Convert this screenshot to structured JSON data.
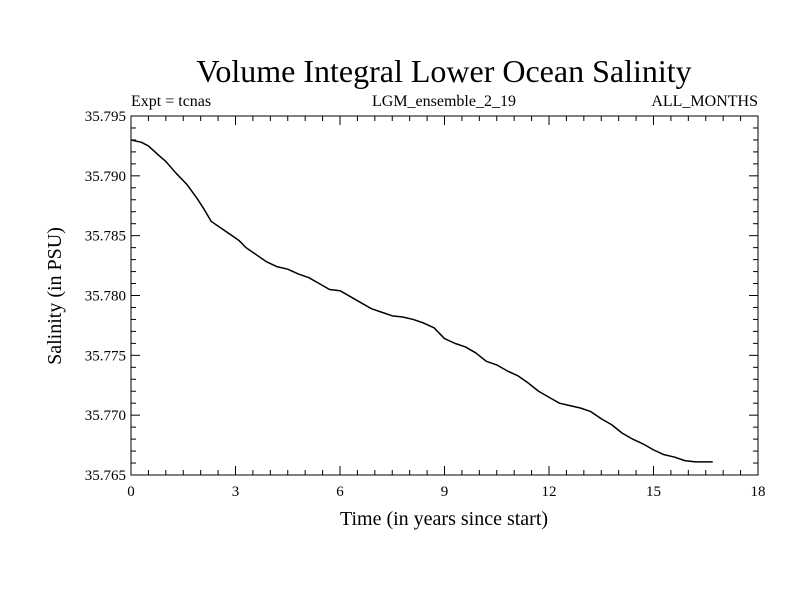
{
  "chart_data": {
    "type": "line",
    "title": "Volume Integral Lower Ocean Salinity",
    "subtitle_left": "Expt = tcnas",
    "subtitle_center": "LGM_ensemble_2_19",
    "subtitle_right": "ALL_MONTHS",
    "xlabel": "Time (in years since start)",
    "ylabel": "Salinity (in PSU)",
    "xlim": [
      0,
      18
    ],
    "ylim": [
      35.765,
      35.795
    ],
    "xticks": [
      0,
      3,
      6,
      9,
      12,
      15,
      18
    ],
    "xtick_labels": [
      "0",
      "3",
      "6",
      "9",
      "12",
      "15",
      "18"
    ],
    "yticks": [
      35.765,
      35.77,
      35.775,
      35.78,
      35.785,
      35.79,
      35.795
    ],
    "ytick_labels": [
      "35.765",
      "35.770",
      "35.775",
      "35.780",
      "35.785",
      "35.790",
      "35.795"
    ],
    "x_minor_step": 0.5,
    "y_minor_step": 0.001,
    "line_color": "#000000",
    "series": [
      {
        "name": "salinity",
        "x": [
          0,
          0.3,
          0.5,
          0.8,
          1.0,
          1.3,
          1.6,
          1.9,
          2.1,
          2.3,
          2.6,
          2.9,
          3.1,
          3.3,
          3.6,
          3.9,
          4.2,
          4.5,
          4.8,
          5.1,
          5.4,
          5.7,
          6.0,
          6.3,
          6.6,
          6.9,
          7.2,
          7.5,
          7.8,
          8.1,
          8.4,
          8.7,
          9.0,
          9.3,
          9.6,
          9.9,
          10.2,
          10.5,
          10.8,
          11.1,
          11.4,
          11.7,
          12.0,
          12.3,
          12.6,
          12.9,
          13.2,
          13.5,
          13.8,
          14.1,
          14.4,
          14.7,
          15.0,
          15.3,
          15.6,
          15.9,
          16.2,
          16.5,
          16.7
        ],
        "values": [
          35.793,
          35.7928,
          35.7925,
          35.7917,
          35.7912,
          35.7902,
          35.7893,
          35.7881,
          35.7872,
          35.7862,
          35.7856,
          35.785,
          35.7846,
          35.784,
          35.7834,
          35.7828,
          35.7824,
          35.7822,
          35.7818,
          35.7815,
          35.781,
          35.7805,
          35.7804,
          35.7799,
          35.7794,
          35.7789,
          35.7786,
          35.7783,
          35.7782,
          35.778,
          35.7777,
          35.7773,
          35.7764,
          35.776,
          35.7757,
          35.7752,
          35.7745,
          35.7742,
          35.7737,
          35.7733,
          35.7727,
          35.772,
          35.7715,
          35.771,
          35.7708,
          35.7706,
          35.7703,
          35.7697,
          35.7692,
          35.7685,
          35.768,
          35.7676,
          35.7671,
          35.7667,
          35.7665,
          35.7662,
          35.7661,
          35.7661,
          35.7661
        ]
      }
    ]
  }
}
